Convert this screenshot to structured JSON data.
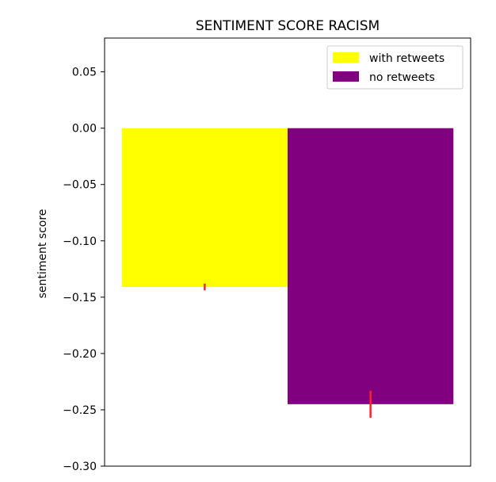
{
  "chart_data": {
    "type": "bar",
    "title": "SENTIMENT SCORE RACISM",
    "xlabel": "",
    "ylabel": "sentiment score",
    "ylim": [
      -0.3,
      0.08
    ],
    "yticks": [
      0.05,
      0.0,
      -0.05,
      -0.1,
      -0.15,
      -0.2,
      -0.25,
      -0.3
    ],
    "ytick_labels": [
      "0.05",
      "0.00",
      "−0.05",
      "−0.10",
      "−0.15",
      "−0.20",
      "−0.25",
      "−0.30"
    ],
    "grid": false,
    "legend_position": "top-right",
    "series": [
      {
        "name": "with retweets",
        "value": -0.141,
        "error": 0.003,
        "color": "#ffff00"
      },
      {
        "name": "no retweets",
        "value": -0.245,
        "error": 0.012,
        "color": "#800080"
      }
    ],
    "error_bar_color": "#ff2020"
  }
}
